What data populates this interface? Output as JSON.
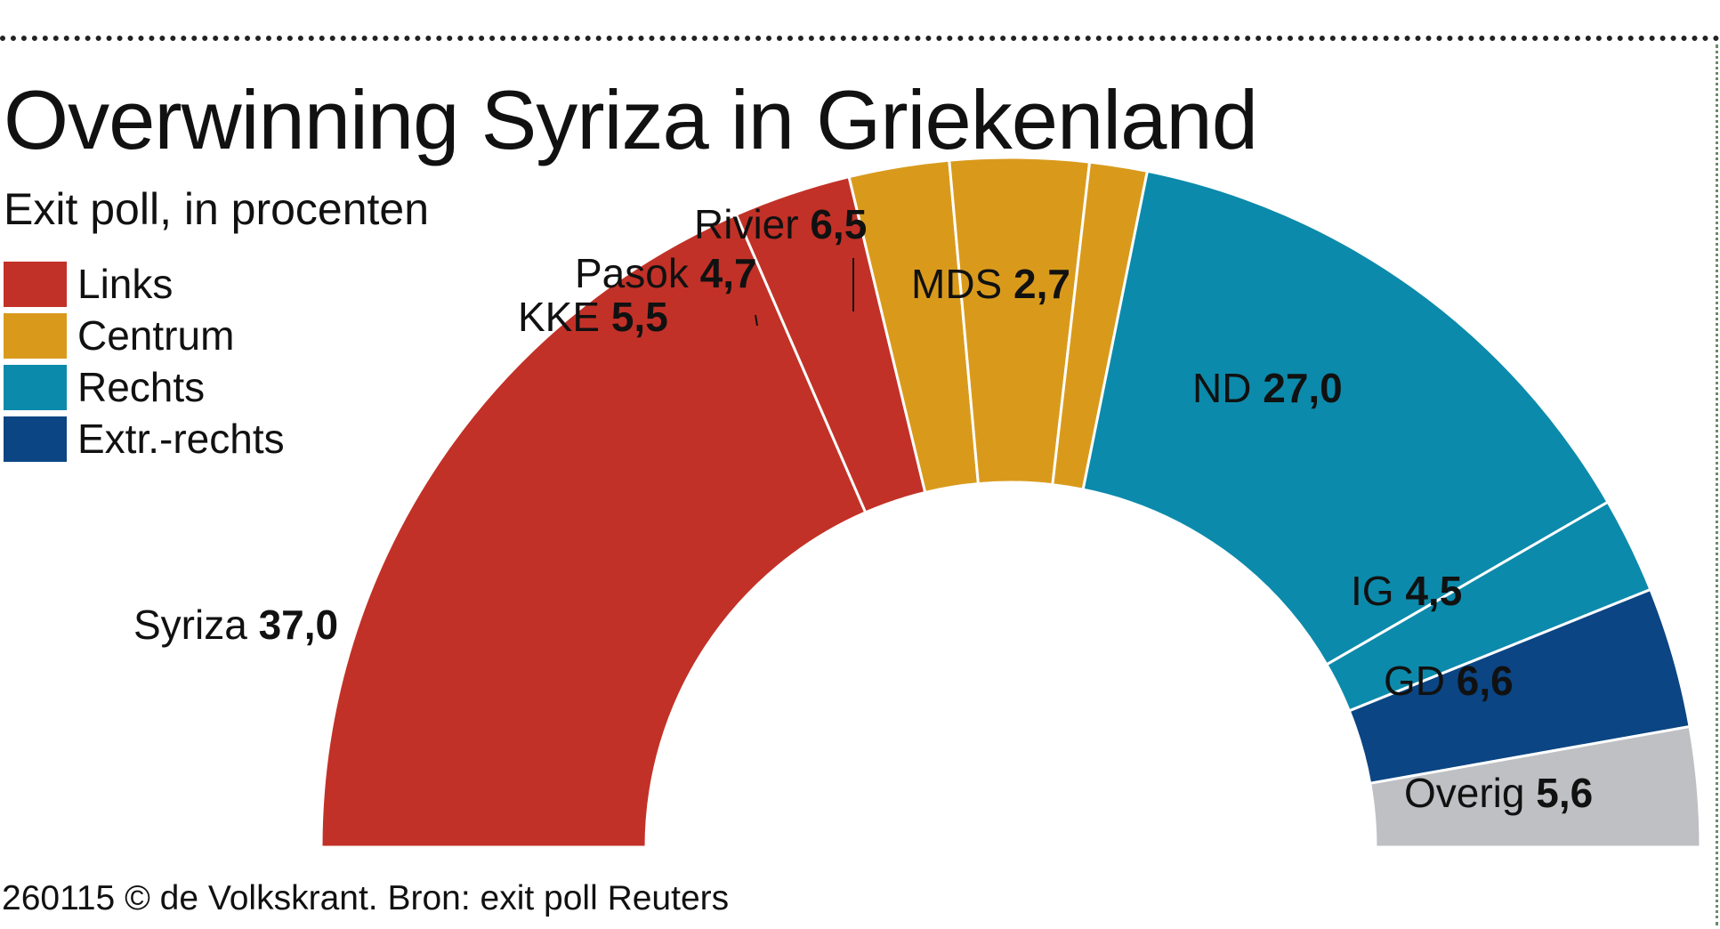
{
  "title": "Overwinning Syriza in Griekenland",
  "subtitle": "Exit poll, in procenten",
  "legend": [
    {
      "label": "Links",
      "color": "#c23127"
    },
    {
      "label": "Centrum",
      "color": "#d99a1c"
    },
    {
      "label": "Rechts",
      "color": "#0c8aab"
    },
    {
      "label": "Extr.-rechts",
      "color": "#0b4583"
    }
  ],
  "footer": "260115 © de Volkskrant. Bron: exit poll Reuters",
  "chart_data": {
    "type": "pie",
    "shape": "half-donut",
    "title": "Overwinning Syriza in Griekenland",
    "subtitle": "Exit poll, in procenten",
    "slices": [
      {
        "name": "Syriza",
        "value": 37.0,
        "display": "37,0",
        "group": "Links",
        "color": "#c23127"
      },
      {
        "name": "KKE",
        "value": 5.5,
        "display": "5,5",
        "group": "Links",
        "color": "#c23127"
      },
      {
        "name": "Pasok",
        "value": 4.7,
        "display": "4,7",
        "group": "Centrum",
        "color": "#d99a1c"
      },
      {
        "name": "Rivier",
        "value": 6.5,
        "display": "6,5",
        "group": "Centrum",
        "color": "#d99a1c"
      },
      {
        "name": "MDS",
        "value": 2.7,
        "display": "2,7",
        "group": "Centrum",
        "color": "#d99a1c"
      },
      {
        "name": "ND",
        "value": 27.0,
        "display": "27,0",
        "group": "Rechts",
        "color": "#0c8aab"
      },
      {
        "name": "IG",
        "value": 4.5,
        "display": "4,5",
        "group": "Rechts",
        "color": "#0c8aab"
      },
      {
        "name": "GD",
        "value": 6.6,
        "display": "6,6",
        "group": "Extr.-rechts",
        "color": "#0b4583"
      },
      {
        "name": "Overig",
        "value": 5.6,
        "display": "5,6",
        "group": "Overig",
        "color": "#bfc0c4"
      }
    ]
  }
}
